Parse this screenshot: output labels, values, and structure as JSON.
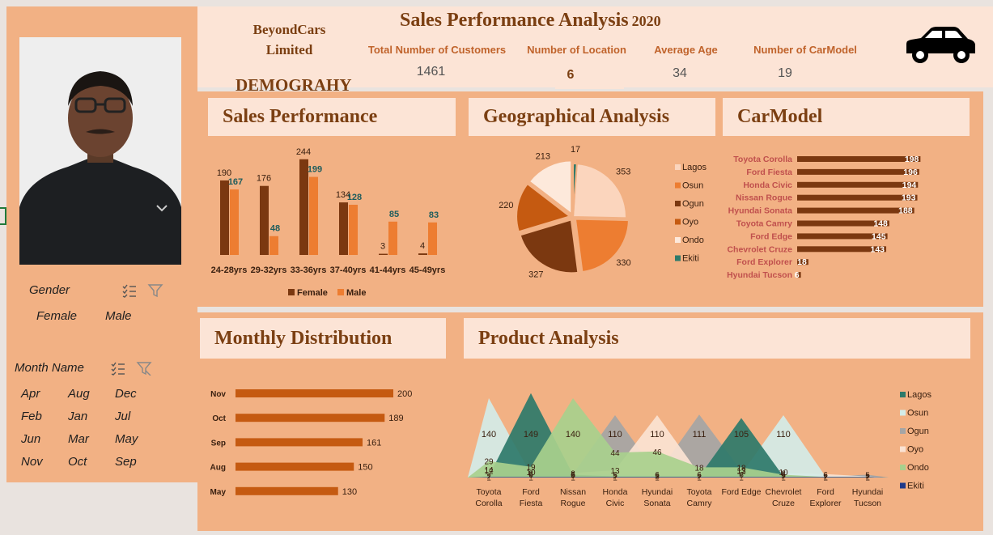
{
  "header": {
    "company_line1": "BeyondCars",
    "company_line2": "Limited",
    "title": "Sales Performance Analysis",
    "year": "2020",
    "section_label": "DEMOGRAHY",
    "kpis": [
      {
        "label": "Total Number of Customers",
        "value": "1461"
      },
      {
        "label": "Number of Location",
        "value": "6"
      },
      {
        "label": "Average Age",
        "value": "34"
      },
      {
        "label": "Number of CarModel",
        "value": "19"
      }
    ],
    "car_icon": "car-icon"
  },
  "sidebar": {
    "gender_slicer": {
      "title": "Gender",
      "items": [
        "Female",
        "Male"
      ],
      "multi_select_icon": "multi-select-icon",
      "clear_filter_icon": "clear-filter-icon"
    },
    "month_slicer": {
      "title": "Month Name",
      "items": [
        "Apr",
        "Aug",
        "Dec",
        "Feb",
        "Jan",
        "Jul",
        "Jun",
        "Mar",
        "May",
        "Nov",
        "Oct",
        "Sep"
      ],
      "multi_select_icon": "multi-select-icon",
      "clear_filter_icon": "clear-filter-icon"
    }
  },
  "cards": {
    "sales_title": "Sales Performance",
    "geo_title": "Geographical Analysis",
    "carmodel_title": "CarModel",
    "monthly_title": "Monthly Distribution",
    "product_title": "Product Analysis"
  },
  "colors": {
    "dark": "#7b3810",
    "orange": "#ed7d31",
    "teal": "#2e7a6a",
    "green": "#a8d08d",
    "lightblue": "#d4ece8",
    "gray": "#a5a5a5",
    "cream": "#fbe3d3",
    "navy": "#1f3a8a"
  },
  "chart_data": [
    {
      "id": "sales_performance",
      "type": "bar",
      "categories": [
        "24-28yrs",
        "29-32yrs",
        "33-36yrs",
        "37-40yrs",
        "41-44yrs",
        "45-49yrs"
      ],
      "series": [
        {
          "name": "Female",
          "values": [
            190,
            176,
            244,
            134,
            3,
            4
          ]
        },
        {
          "name": "Male",
          "values": [
            167,
            48,
            199,
            128,
            85,
            83
          ]
        }
      ],
      "ylim": [
        0,
        260
      ],
      "legend": "bottom"
    },
    {
      "id": "geographical",
      "type": "pie",
      "labels": [
        "Lagos",
        "Osun",
        "Ogun",
        "Oyo",
        "Ondo",
        "Ekiti"
      ],
      "values": [
        353,
        330,
        327,
        220,
        213,
        17
      ],
      "legend": "right"
    },
    {
      "id": "carmodel",
      "type": "bar",
      "orientation": "horizontal",
      "categories": [
        "Toyota Corolla",
        "Ford Fiesta",
        "Honda Civic",
        "Nissan Rogue",
        "Hyundai Sonata",
        "Toyota Camry",
        "Ford Edge",
        "Chevrolet Cruze",
        "Ford Explorer",
        "Hyundai Tucson"
      ],
      "values": [
        198,
        196,
        194,
        193,
        188,
        148,
        145,
        143,
        18,
        6
      ],
      "xlim": [
        0,
        200
      ]
    },
    {
      "id": "monthly",
      "type": "bar",
      "orientation": "horizontal",
      "categories": [
        "Nov",
        "Oct",
        "Sep",
        "Aug",
        "May"
      ],
      "values": [
        200,
        189,
        161,
        150,
        130
      ],
      "xlim": [
        0,
        200
      ]
    },
    {
      "id": "product",
      "type": "area",
      "categories": [
        "Toyota Corolla",
        "Ford Fiesta",
        "Nissan Rogue",
        "Honda Civic",
        "Hyundai Sonata",
        "Toyota Camry",
        "Ford Edge",
        "Chevrolet Cruze",
        "Ford Explorer",
        "Hyundai Tucson"
      ],
      "category_lines": [
        [
          "Toyota",
          "Corolla"
        ],
        [
          "Ford",
          "Fiesta"
        ],
        [
          "Nissan",
          "Rogue"
        ],
        [
          "Honda",
          "Civic"
        ],
        [
          "Hyundai",
          "Sonata"
        ],
        [
          "Toyota",
          "Camry"
        ],
        [
          "Ford Edge",
          ""
        ],
        [
          "Chevrolet",
          "Cruze"
        ],
        [
          "Ford",
          "Explorer"
        ],
        [
          "Hyundai",
          "Tucson"
        ]
      ],
      "series": [
        {
          "name": "Lagos",
          "values": [
            2,
            149,
            5,
            2,
            2,
            2,
            105,
            2,
            1,
            1
          ]
        },
        {
          "name": "Osun",
          "values": [
            140,
            6,
            6,
            5,
            3,
            2,
            6,
            110,
            2,
            2
          ]
        },
        {
          "name": "Ogun",
          "values": [
            14,
            10,
            6,
            110,
            6,
            111,
            12,
            10,
            2,
            5
          ]
        },
        {
          "name": "Oyo",
          "values": [
            12,
            8,
            8,
            13,
            110,
            6,
            13,
            8,
            6,
            2
          ]
        },
        {
          "name": "Ondo",
          "values": [
            29,
            19,
            140,
            44,
            46,
            18,
            18,
            5,
            1,
            1
          ]
        },
        {
          "name": "Ekiti",
          "values": [
            1,
            1,
            1,
            1,
            1,
            1,
            1,
            1,
            1,
            1
          ]
        }
      ],
      "ylim": [
        0,
        160
      ],
      "legend": "right"
    }
  ]
}
